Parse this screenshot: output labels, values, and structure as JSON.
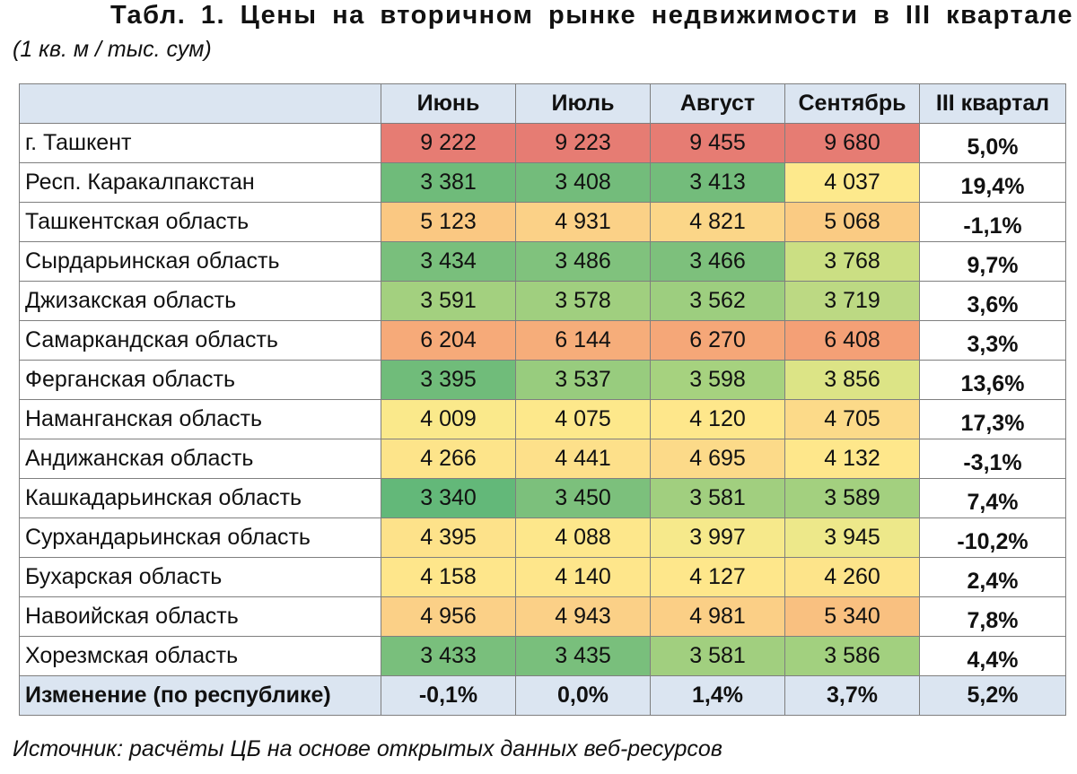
{
  "title": "Табл. 1. Цены на вторичном рынке недвижимости в III квартале",
  "subtitle": "(1 кв. м / тыс. сум)",
  "table": {
    "headers": [
      "",
      "Июнь",
      "Июль",
      "Август",
      "Сентябрь",
      "III квартал"
    ],
    "rows": [
      {
        "region": "г. Ташкент",
        "values": [
          "9 222",
          "9 223",
          "9 455",
          "9 680"
        ],
        "change": "5,0%",
        "colors": [
          "#e67c73",
          "#e67c73",
          "#e67c73",
          "#e67c73"
        ]
      },
      {
        "region": "Респ. Каракалпакстан",
        "values": [
          "3 381",
          "3 408",
          "3 413",
          "4 037"
        ],
        "change": "19,4%",
        "colors": [
          "#6fbb7a",
          "#73bc7b",
          "#73bc7b",
          "#fde98c"
        ]
      },
      {
        "region": "Ташкентская область",
        "values": [
          "5 123",
          "4 931",
          "4 821",
          "5 068"
        ],
        "change": "-1,1%",
        "colors": [
          "#fac882",
          "#fbd187",
          "#fbd688",
          "#facb83"
        ]
      },
      {
        "region": "Сырдарьинская область",
        "values": [
          "3 434",
          "3 486",
          "3 466",
          "3 768"
        ],
        "change": "9,7%",
        "colors": [
          "#79bf7c",
          "#80c27d",
          "#7dc07c",
          "#cbdf83"
        ]
      },
      {
        "region": "Джизакская область",
        "values": [
          "3 591",
          "3 578",
          "3 562",
          "3 719"
        ],
        "change": "3,6%",
        "colors": [
          "#a3d07f",
          "#a0cf7f",
          "#9dce7f",
          "#bcd983"
        ]
      },
      {
        "region": "Самаркандская область",
        "values": [
          "6 204",
          "6 144",
          "6 270",
          "6 408"
        ],
        "change": "3,3%",
        "colors": [
          "#f6aa79",
          "#f6ad7a",
          "#f5a778",
          "#f4a076"
        ]
      },
      {
        "region": "Ферганская область",
        "values": [
          "3 395",
          "3 537",
          "3 598",
          "3 856"
        ],
        "change": "13,6%",
        "colors": [
          "#70bc7a",
          "#98cc7e",
          "#a6d27f",
          "#dce486"
        ]
      },
      {
        "region": "Наманганская область",
        "values": [
          "4 009",
          "4 075",
          "4 120",
          "4 705"
        ],
        "change": "17,3%",
        "colors": [
          "#fae98b",
          "#fde88b",
          "#fee78b",
          "#fcda89"
        ]
      },
      {
        "region": "Андижанская область",
        "values": [
          "4 266",
          "4 441",
          "4 695",
          "4 132"
        ],
        "change": "-3,1%",
        "colors": [
          "#fde48a",
          "#fde08a",
          "#fcda89",
          "#fee78b"
        ]
      },
      {
        "region": "Кашкадарьинская область",
        "values": [
          "3 340",
          "3 450",
          "3 581",
          "3 589"
        ],
        "change": "7,4%",
        "colors": [
          "#63b879",
          "#7cc07c",
          "#a1cf7f",
          "#a3d07f"
        ]
      },
      {
        "region": "Сурхандарьинская область",
        "values": [
          "4 395",
          "4 088",
          "3 997",
          "3 945"
        ],
        "change": "-10,2%",
        "colors": [
          "#fde28a",
          "#fde78b",
          "#f6e98b",
          "#ede88a"
        ]
      },
      {
        "region": "Бухарская область",
        "values": [
          "4 158",
          "4 140",
          "4 127",
          "4 260"
        ],
        "change": "2,4%",
        "colors": [
          "#fee68b",
          "#fee68b",
          "#fee78b",
          "#fde48a"
        ]
      },
      {
        "region": "Навоийская область",
        "values": [
          "4 956",
          "4 943",
          "4 981",
          "5 340"
        ],
        "change": "7,8%",
        "colors": [
          "#fbd087",
          "#fbd087",
          "#fbcf86",
          "#f9c080"
        ]
      },
      {
        "region": "Хорезмская область",
        "values": [
          "3 433",
          "3 435",
          "3 581",
          "3 586"
        ],
        "change": "4,4%",
        "colors": [
          "#79bf7c",
          "#79bf7c",
          "#a1cf7f",
          "#a2d07f"
        ]
      }
    ],
    "total": {
      "label": "Изменение (по республике)",
      "values": [
        "-0,1%",
        "0,0%",
        "1,4%",
        "3,7%",
        "5,2%"
      ]
    }
  },
  "source": "Источник: расчёты ЦБ на основе открытых данных веб-ресурсов"
}
